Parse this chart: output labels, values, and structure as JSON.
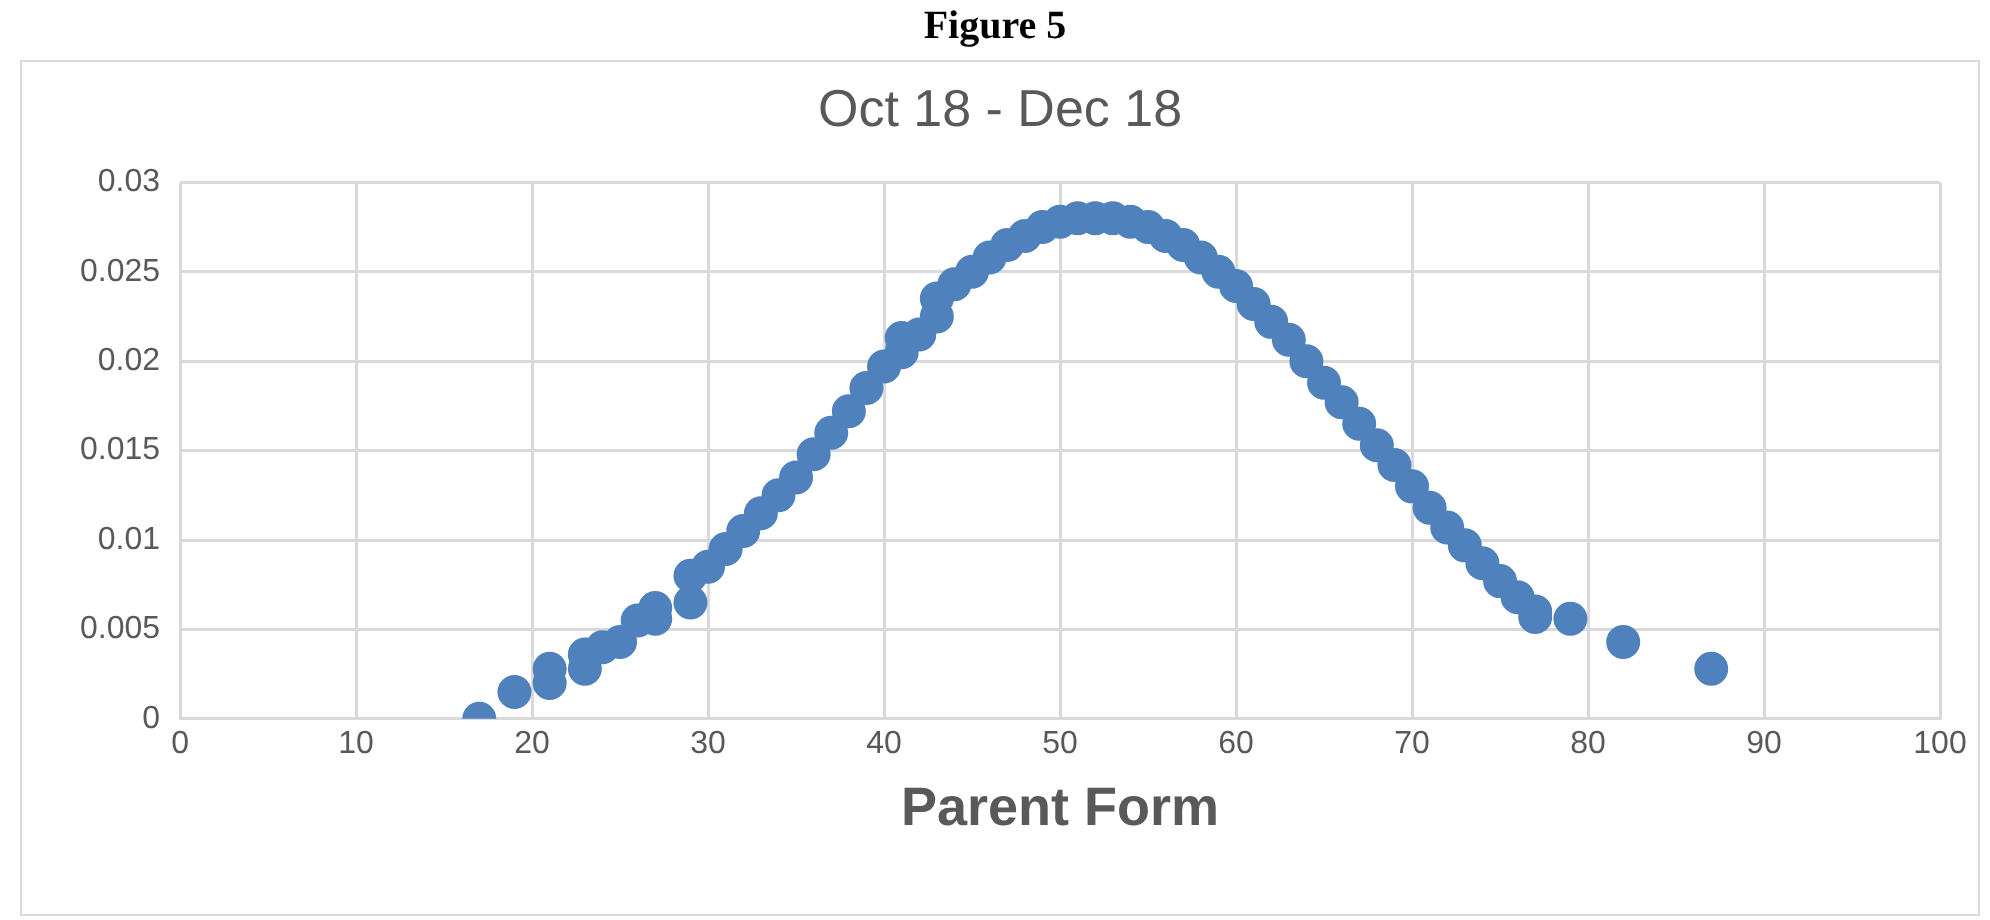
{
  "chart_data": {
    "type": "scatter",
    "title": "Oct 18 - Dec 18",
    "xlabel": "Parent Form",
    "annotations": [
      "Figure 5"
    ],
    "series": [
      {
        "color": "#4f81bd",
        "x": [
          17,
          19,
          21,
          21,
          23,
          23,
          24,
          25,
          26,
          27,
          27,
          29,
          29,
          30,
          31,
          32,
          33,
          34,
          35,
          36,
          37,
          38,
          39,
          40,
          41,
          41,
          42,
          43,
          43,
          44,
          45,
          46,
          47,
          48,
          49,
          50,
          51,
          52,
          53,
          54,
          55,
          56,
          57,
          58,
          59,
          60,
          61,
          62,
          63,
          64,
          65,
          66,
          67,
          68,
          69,
          70,
          71,
          72,
          73,
          74,
          75,
          76,
          77,
          77,
          79,
          82,
          87
        ],
        "values": [
          0,
          0.0015,
          0.002,
          0.0028,
          0.0028,
          0.0036,
          0.004,
          0.0043,
          0.0055,
          0.0056,
          0.0062,
          0.0065,
          0.008,
          0.0085,
          0.0095,
          0.0105,
          0.0115,
          0.0125,
          0.0135,
          0.0148,
          0.016,
          0.0172,
          0.0185,
          0.0197,
          0.0205,
          0.0213,
          0.0215,
          0.0225,
          0.0235,
          0.0243,
          0.025,
          0.0258,
          0.0265,
          0.027,
          0.0275,
          0.0278,
          0.028,
          0.028,
          0.028,
          0.0278,
          0.0275,
          0.027,
          0.0265,
          0.0258,
          0.025,
          0.0242,
          0.0232,
          0.0222,
          0.0212,
          0.02,
          0.0188,
          0.0177,
          0.0165,
          0.0153,
          0.0142,
          0.013,
          0.0118,
          0.0107,
          0.0097,
          0.0087,
          0.0077,
          0.0068,
          0.006,
          0.0057,
          0.0056,
          0.0043,
          0.0028
        ]
      }
    ],
    "xlim": [
      0,
      100
    ],
    "xticks": [
      0,
      10,
      20,
      30,
      40,
      50,
      60,
      70,
      80,
      90,
      100
    ],
    "ylim": [
      0,
      0.03
    ],
    "yticks": [
      0,
      0.005,
      0.01,
      0.015,
      0.02,
      0.025,
      0.03
    ],
    "grid": true,
    "marker": "circle",
    "legend": false
  }
}
